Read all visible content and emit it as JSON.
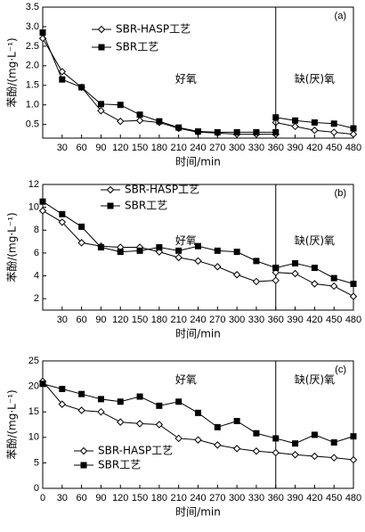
{
  "chart_data": [
    {
      "type": "line",
      "panel": "(a)",
      "ylabel": "苯酚/(mg·L⁻¹)",
      "xlabel": "时间/min",
      "annotations": [
        "好氧",
        "缺(厌)氧"
      ],
      "vline": 360,
      "legend": "upper center",
      "xlim": [
        0,
        480
      ],
      "xticks": [
        30,
        60,
        90,
        120,
        150,
        180,
        210,
        240,
        270,
        300,
        330,
        360,
        390,
        420,
        450,
        480
      ],
      "ylim": [
        0.15,
        3.5
      ],
      "yticks": [
        0.5,
        {
          "value": 1,
          "label": "1.0"
        },
        1.5,
        {
          "value": 2,
          "label": "2.0"
        },
        2.5,
        {
          "value": 3,
          "label": "3.0"
        },
        3.5
      ],
      "x": [
        0,
        30,
        60,
        90,
        120,
        150,
        180,
        210,
        240,
        270,
        300,
        330,
        360,
        360,
        390,
        420,
        450,
        480
      ],
      "series": [
        {
          "name": "SBR-HASP工艺",
          "color": "#000000",
          "marker": "diamond",
          "values": [
            2.7,
            1.85,
            1.45,
            0.85,
            0.58,
            0.6,
            0.55,
            0.4,
            0.3,
            0.28,
            0.25,
            0.25,
            0.25,
            0.55,
            0.45,
            0.35,
            0.3,
            0.25
          ]
        },
        {
          "name": "SBR工艺",
          "color": "#000000",
          "marker": "square",
          "values": [
            2.85,
            1.65,
            1.45,
            1.02,
            1.0,
            0.75,
            0.58,
            0.42,
            0.32,
            0.3,
            0.3,
            0.3,
            0.3,
            0.68,
            0.6,
            0.55,
            0.52,
            0.4
          ]
        }
      ]
    },
    {
      "type": "line",
      "panel": "(b)",
      "ylabel": "苯酚/(mg·L⁻¹)",
      "xlabel": "时间/min",
      "annotations": [
        "好氧",
        "缺(厌)氧"
      ],
      "vline": 360,
      "legend": "upper left",
      "xlim": [
        0,
        480
      ],
      "xticks": [
        30,
        60,
        90,
        120,
        150,
        180,
        210,
        240,
        270,
        300,
        330,
        360,
        390,
        420,
        450,
        480
      ],
      "ylim": [
        1,
        12
      ],
      "yticks": [
        2,
        4,
        6,
        8,
        10,
        12
      ],
      "x": [
        0,
        30,
        60,
        90,
        120,
        150,
        180,
        210,
        240,
        270,
        300,
        330,
        360,
        360,
        390,
        420,
        450,
        480
      ],
      "series": [
        {
          "name": "SBR-HASP工艺",
          "color": "#000000",
          "marker": "diamond",
          "values": [
            9.7,
            8.7,
            6.9,
            6.6,
            6.5,
            6.5,
            6.1,
            5.6,
            5.3,
            4.8,
            4.1,
            3.5,
            3.6,
            4.3,
            4.2,
            3.3,
            3.1,
            2.2
          ]
        },
        {
          "name": "SBR工艺",
          "color": "#000000",
          "marker": "square",
          "values": [
            10.5,
            9.4,
            8.3,
            6.5,
            6.1,
            6.2,
            6.5,
            6.2,
            6.6,
            6.2,
            6.1,
            5.3,
            4.7,
            4.7,
            5.1,
            4.7,
            3.8,
            3.3
          ]
        }
      ]
    },
    {
      "type": "line",
      "panel": "(c)",
      "ylabel": "苯酚/(mg·L⁻¹)",
      "xlabel": "时间/min",
      "annotations": [
        "好氧",
        "缺(厌)氧"
      ],
      "vline": 360,
      "legend": "lower left",
      "xlim": [
        0,
        480
      ],
      "xticks": [
        0,
        30,
        60,
        90,
        120,
        150,
        180,
        210,
        240,
        270,
        300,
        330,
        360,
        390,
        420,
        450,
        480
      ],
      "ylim": [
        0,
        25
      ],
      "yticks": [
        0,
        5,
        10,
        15,
        20,
        25
      ],
      "x": [
        0,
        30,
        60,
        90,
        120,
        150,
        180,
        210,
        240,
        270,
        300,
        330,
        360,
        390,
        420,
        450,
        480
      ],
      "series": [
        {
          "name": "SBR-HASP工艺",
          "color": "#000000",
          "marker": "diamond",
          "values": [
            21,
            16.5,
            15.3,
            15,
            13,
            12.7,
            12.5,
            9.8,
            9.5,
            8.5,
            7.8,
            7.3,
            7.0,
            6.6,
            6.3,
            6.0,
            5.6
          ]
        },
        {
          "name": "SBR工艺",
          "color": "#000000",
          "marker": "square",
          "values": [
            20.5,
            19.5,
            18.5,
            17.5,
            17.0,
            18.0,
            16.2,
            17.0,
            14.8,
            12.0,
            13.2,
            10.8,
            9.8,
            8.8,
            10.5,
            9.0,
            10.2
          ]
        }
      ]
    }
  ]
}
